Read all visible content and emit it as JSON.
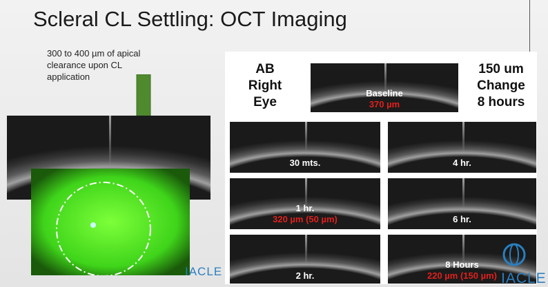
{
  "header": {
    "title": "Scleral CL Settling: OCT Imaging"
  },
  "annotation": [
    "300 to 400 µm of apical",
    "clearance upon CL",
    "application"
  ],
  "panel": {
    "subject": [
      "AB",
      "Right",
      "Eye"
    ],
    "change": [
      "150 um",
      "Change",
      "8 hours"
    ],
    "baseline": {
      "label": "Baseline",
      "value": "370 µm"
    },
    "scans": [
      {
        "label": "30 mts."
      },
      {
        "label": "4 hr."
      },
      {
        "label": "1 hr.",
        "value": "320 µm (50 µm)"
      },
      {
        "label": "6 hr."
      },
      {
        "label": "2 hr."
      },
      {
        "label": "8 Hours",
        "value": "220 µm (150 µm)"
      }
    ]
  },
  "logos": [
    "IACLE",
    "IACLE"
  ]
}
